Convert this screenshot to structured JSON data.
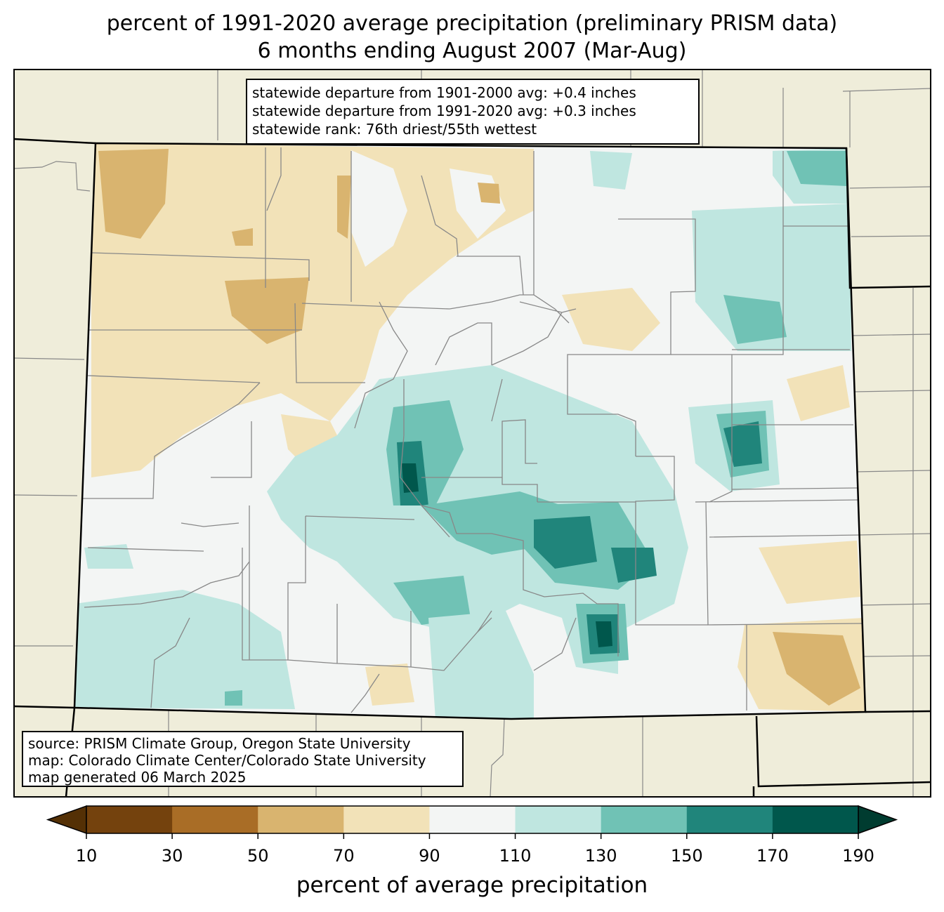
{
  "title": {
    "line1": "percent of 1991-2020 average precipitation (preliminary PRISM data)",
    "line2": "6 months ending August 2007 (Mar-Aug)"
  },
  "stats": {
    "line1": "statewide departure from 1901-2000 avg: +0.4 inches",
    "line2": "statewide departure from 1991-2020 avg: +0.3 inches",
    "line3": "statewide rank: 76th driest/55th wettest"
  },
  "credits": {
    "line1": "source: PRISM Climate Group, Oregon State University",
    "line2": "map: Colorado Climate Center/Colorado State University",
    "line3": "map generated 06 March 2025"
  },
  "colorbar": {
    "label": "percent of average precipitation",
    "ticks": [
      "10",
      "30",
      "50",
      "70",
      "90",
      "110",
      "130",
      "150",
      "170",
      "190"
    ],
    "colors": [
      "#543005",
      "#8c510a",
      "#bf812d",
      "#dfc27d",
      "#f6e8c3",
      "#f5f5f5",
      "#c7eae5",
      "#80cdc1",
      "#35978f",
      "#01665e",
      "#003c30"
    ],
    "band_colors": [
      "#74420d",
      "#a96d26",
      "#d9b46f",
      "#f2e2b8",
      "#f3f5f4",
      "#bfe6e0",
      "#70c2b5",
      "#20857b",
      "#00574c"
    ]
  },
  "map": {
    "background": "#efedda",
    "state_fill": "#f3f5f4"
  }
}
